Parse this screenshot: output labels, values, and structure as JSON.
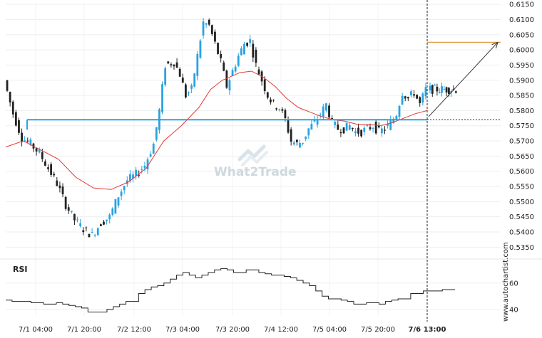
{
  "chart_data": [
    {
      "type": "candlestick",
      "title": "",
      "ylim": [
        0.5325,
        0.6155
      ],
      "y_ticks": [
        "0.6150",
        "0.6100",
        "0.6050",
        "0.6000",
        "0.5950",
        "0.5900",
        "0.5850",
        "0.5800",
        "0.5750",
        "0.5700",
        "0.5650",
        "0.5600",
        "0.5550",
        "0.5500",
        "0.5450",
        "0.5400",
        "0.5350"
      ],
      "x_ticks": [
        "7/1 04:00",
        "7/1 20:00",
        "7/2 12:00",
        "7/3 04:00",
        "7/3 20:00",
        "7/4 12:00",
        "7/5 04:00",
        "7/5 20:00",
        "7/6 13:00"
      ],
      "price_path": [
        [
          0,
          0.59
        ],
        [
          3,
          0.579
        ],
        [
          6,
          0.571
        ],
        [
          9,
          0.569
        ],
        [
          12,
          0.566
        ],
        [
          15,
          0.561
        ],
        [
          18,
          0.556
        ],
        [
          21,
          0.549
        ],
        [
          24,
          0.544
        ],
        [
          27,
          0.541
        ],
        [
          30,
          0.539
        ],
        [
          33,
          0.543
        ],
        [
          36,
          0.545
        ],
        [
          39,
          0.552
        ],
        [
          42,
          0.557
        ],
        [
          45,
          0.559
        ],
        [
          48,
          0.562
        ],
        [
          51,
          0.569
        ],
        [
          53,
          0.58
        ],
        [
          55,
          0.595
        ],
        [
          58,
          0.596
        ],
        [
          60,
          0.592
        ],
        [
          62,
          0.585
        ],
        [
          64,
          0.587
        ],
        [
          66,
          0.598
        ],
        [
          68,
          0.609
        ],
        [
          70,
          0.608
        ],
        [
          72,
          0.602
        ],
        [
          74,
          0.596
        ],
        [
          76,
          0.588
        ],
        [
          78,
          0.593
        ],
        [
          80,
          0.598
        ],
        [
          82,
          0.602
        ],
        [
          84,
          0.603
        ],
        [
          86,
          0.595
        ],
        [
          88,
          0.59
        ],
        [
          90,
          0.585
        ],
        [
          92,
          0.582
        ],
        [
          94,
          0.581
        ],
        [
          96,
          0.577
        ],
        [
          98,
          0.57
        ],
        [
          100,
          0.569
        ],
        [
          102,
          0.57
        ],
        [
          104,
          0.574
        ],
        [
          106,
          0.576
        ],
        [
          108,
          0.579
        ],
        [
          110,
          0.582
        ],
        [
          112,
          0.576
        ],
        [
          114,
          0.574
        ],
        [
          116,
          0.574
        ],
        [
          118,
          0.575
        ],
        [
          120,
          0.573
        ],
        [
          122,
          0.573
        ],
        [
          124,
          0.574
        ],
        [
          126,
          0.575
        ],
        [
          128,
          0.573
        ],
        [
          130,
          0.574
        ],
        [
          132,
          0.576
        ],
        [
          134,
          0.579
        ],
        [
          136,
          0.586
        ],
        [
          138,
          0.584
        ],
        [
          140,
          0.586
        ],
        [
          142,
          0.582
        ],
        [
          144,
          0.587
        ]
      ],
      "moving_average_path": [
        [
          0,
          0.568
        ],
        [
          6,
          0.57
        ],
        [
          12,
          0.567
        ],
        [
          18,
          0.564
        ],
        [
          24,
          0.558
        ],
        [
          30,
          0.5545
        ],
        [
          36,
          0.554
        ],
        [
          42,
          0.5565
        ],
        [
          48,
          0.561
        ],
        [
          54,
          0.57
        ],
        [
          60,
          0.575
        ],
        [
          66,
          0.581
        ],
        [
          70,
          0.587
        ],
        [
          74,
          0.59
        ],
        [
          80,
          0.5925
        ],
        [
          84,
          0.593
        ],
        [
          88,
          0.591
        ],
        [
          92,
          0.588
        ],
        [
          96,
          0.584
        ],
        [
          100,
          0.581
        ],
        [
          104,
          0.5795
        ],
        [
          108,
          0.578
        ],
        [
          112,
          0.577
        ],
        [
          116,
          0.5765
        ],
        [
          120,
          0.5755
        ],
        [
          124,
          0.5755
        ],
        [
          128,
          0.575
        ],
        [
          132,
          0.576
        ],
        [
          136,
          0.5775
        ],
        [
          140,
          0.579
        ],
        [
          144,
          0.58
        ]
      ],
      "support_resistance_level": 0.577,
      "target_level": 0.6025,
      "breakout_arrow": [
        [
          134,
          0.578
        ],
        [
          144,
          0.6025
        ]
      ],
      "candles_visible": 144,
      "current_time": "7/6 13:00"
    },
    {
      "type": "line",
      "title": "RSI",
      "ylim": [
        35,
        75
      ],
      "y_ticks": [
        "60",
        "40"
      ],
      "values": [
        47,
        46,
        46,
        46,
        45,
        45,
        44,
        44,
        45,
        44,
        43,
        42,
        41,
        38,
        38,
        38,
        40,
        42,
        44,
        46,
        46,
        52,
        55,
        57,
        58,
        60,
        63,
        66,
        68,
        66,
        64,
        66,
        68,
        70,
        71,
        70,
        68,
        68,
        70,
        70,
        68,
        67,
        66,
        66,
        65,
        64,
        62,
        60,
        58,
        54,
        50,
        48,
        48,
        47,
        46,
        44,
        44,
        45,
        45,
        44,
        46,
        47,
        48,
        48,
        52,
        52,
        54,
        54,
        54,
        55,
        55
      ]
    }
  ],
  "watermark": "What2Trade",
  "source_text": "www.autochartist.com"
}
